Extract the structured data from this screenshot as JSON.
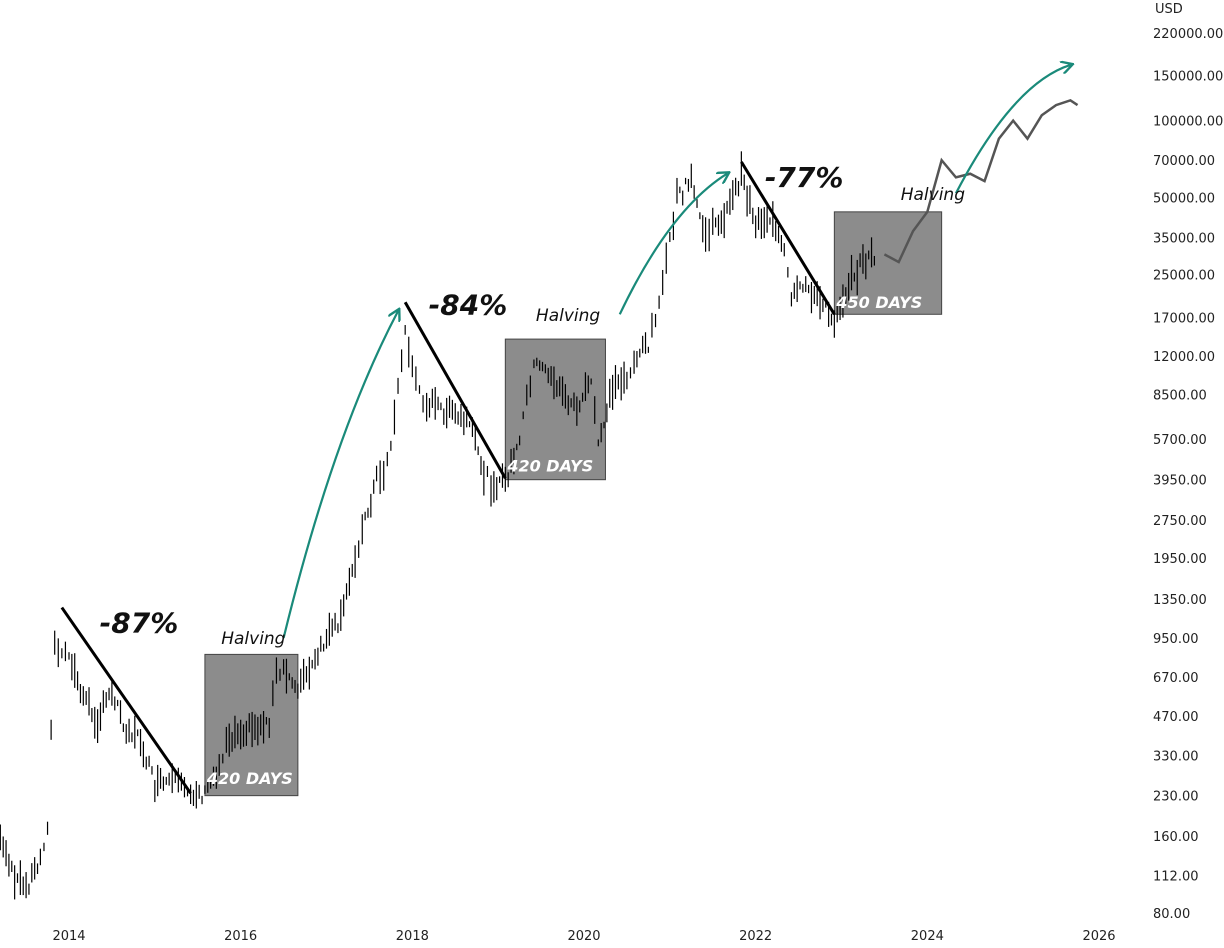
{
  "chart_data": {
    "type": "line",
    "scale": "log",
    "y_unit": "USD",
    "y_ticks": [
      80,
      112,
      160,
      230,
      330,
      470,
      670,
      950,
      1350,
      1950,
      2750,
      3950,
      5700,
      8500,
      12000,
      17000,
      25000,
      35000,
      50000,
      70000,
      100000,
      150000,
      220000
    ],
    "y_tick_labels": [
      "80.00",
      "112.00",
      "160.00",
      "230.00",
      "330.00",
      "470.00",
      "670.00",
      "950.00",
      "1350.00",
      "1950.00",
      "2750.00",
      "3950.00",
      "5700.00",
      "8500.00",
      "12000.00",
      "17000.00",
      "25000.00",
      "35000.00",
      "50000.00",
      "70000.00",
      "100000.00",
      "150000.00",
      "220000.00"
    ],
    "x_ticks": [
      "2014",
      "2016",
      "2018",
      "2020",
      "2022",
      "2024",
      "2026"
    ],
    "grid": false,
    "series": [
      {
        "style": "bars",
        "color": "#000000",
        "x": [
          "2013-01",
          "2013-03",
          "2013-05",
          "2013-07",
          "2013-09",
          "2013-10",
          "2013-11",
          "2013-12",
          "2014-01",
          "2014-03",
          "2014-05",
          "2014-07",
          "2014-09",
          "2014-11",
          "2015-01",
          "2015-03",
          "2015-06",
          "2015-08",
          "2015-10",
          "2015-11",
          "2016-01",
          "2016-03",
          "2016-05",
          "2016-06",
          "2016-07",
          "2016-09",
          "2016-11",
          "2017-01",
          "2017-03",
          "2017-05",
          "2017-06",
          "2017-08",
          "2017-09",
          "2017-10",
          "2017-11",
          "2017-12",
          "2018-01",
          "2018-02",
          "2018-03",
          "2018-05",
          "2018-07",
          "2018-09",
          "2018-11",
          "2018-12",
          "2019-02",
          "2019-04",
          "2019-05",
          "2019-06",
          "2019-08",
          "2019-10",
          "2019-12",
          "2020-02",
          "2020-03",
          "2020-05",
          "2020-07",
          "2020-08",
          "2020-10",
          "2020-11",
          "2020-12",
          "2021-01",
          "2021-02",
          "2021-04",
          "2021-06",
          "2021-07",
          "2021-09",
          "2021-11",
          "2022-01",
          "2022-03",
          "2022-05",
          "2022-06",
          "2022-08",
          "2022-10",
          "2022-12",
          "2023-02",
          "2023-04",
          "2023-06"
        ],
        "values": [
          110,
          160,
          115,
          100,
          130,
          180,
          900,
          800,
          800,
          560,
          450,
          600,
          420,
          380,
          250,
          260,
          240,
          230,
          300,
          380,
          420,
          420,
          450,
          680,
          690,
          620,
          720,
          950,
          1100,
          2000,
          2500,
          4000,
          4200,
          5500,
          9000,
          15000,
          11000,
          8500,
          8000,
          7500,
          7000,
          6500,
          4200,
          3800,
          3900,
          5500,
          8500,
          11000,
          10500,
          8500,
          7500,
          9500,
          5500,
          9000,
          10000,
          11500,
          13500,
          17500,
          23000,
          33000,
          50000,
          58000,
          35000,
          38000,
          44000,
          61000,
          40000,
          42000,
          30000,
          20000,
          23000,
          19500,
          16800,
          23000,
          28000,
          30000
        ]
      },
      {
        "style": "line",
        "color": "#555555",
        "x": [
          "2023-07",
          "2023-09",
          "2023-11",
          "2024-01",
          "2024-03",
          "2024-05",
          "2024-07",
          "2024-09",
          "2024-11",
          "2025-01",
          "2025-03",
          "2025-05",
          "2025-07",
          "2025-09",
          "2025-10"
        ],
        "values": [
          30000,
          28000,
          37000,
          44000,
          70000,
          60000,
          62000,
          58000,
          85000,
          100000,
          85000,
          105000,
          115000,
          120000,
          115000
        ]
      }
    ],
    "annotations": [
      {
        "type": "drawdown",
        "text": "-87%"
      },
      {
        "type": "drawdown",
        "text": "-84%"
      },
      {
        "type": "drawdown",
        "text": "-77%"
      },
      {
        "type": "box",
        "text": "420 DAYS"
      },
      {
        "type": "box",
        "text": "420 DAYS"
      },
      {
        "type": "box",
        "text": "450 DAYS"
      },
      {
        "type": "halving",
        "text": "Halving"
      },
      {
        "type": "halving",
        "text": "Halving"
      },
      {
        "type": "halving",
        "text": "Halving"
      }
    ],
    "colors": {
      "candles": "#000000",
      "projection": "#555555",
      "arrow": "#1a8a7a",
      "box": "#8c8c8c",
      "trend": "#000000"
    }
  }
}
